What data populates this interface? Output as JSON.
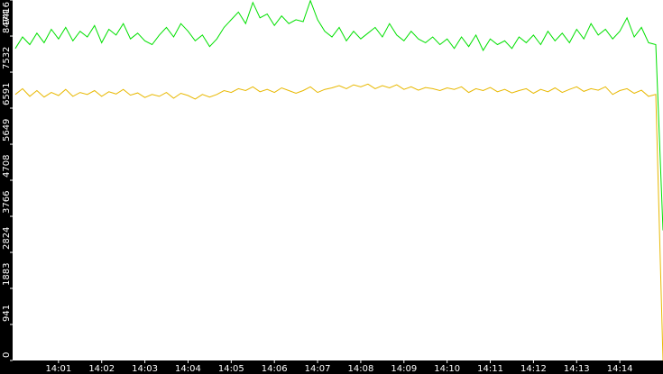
{
  "chart_data": {
    "type": "line",
    "x": [
      "14:00:00",
      "14:00:10",
      "14:00:20",
      "14:00:30",
      "14:00:40",
      "14:00:50",
      "14:01:00",
      "14:01:10",
      "14:01:20",
      "14:01:30",
      "14:01:40",
      "14:01:50",
      "14:02:00",
      "14:02:10",
      "14:02:20",
      "14:02:30",
      "14:02:40",
      "14:02:50",
      "14:03:00",
      "14:03:10",
      "14:03:20",
      "14:03:30",
      "14:03:40",
      "14:03:50",
      "14:04:00",
      "14:04:10",
      "14:04:20",
      "14:04:30",
      "14:04:40",
      "14:04:50",
      "14:05:00",
      "14:05:10",
      "14:05:20",
      "14:05:30",
      "14:05:40",
      "14:05:50",
      "14:06:00",
      "14:06:10",
      "14:06:20",
      "14:06:30",
      "14:06:40",
      "14:06:50",
      "14:07:00",
      "14:07:10",
      "14:07:20",
      "14:07:30",
      "14:07:40",
      "14:07:50",
      "14:08:00",
      "14:08:10",
      "14:08:20",
      "14:08:30",
      "14:08:40",
      "14:08:50",
      "14:09:00",
      "14:09:10",
      "14:09:20",
      "14:09:30",
      "14:09:40",
      "14:09:50",
      "14:10:00",
      "14:10:10",
      "14:10:20",
      "14:10:30",
      "14:10:40",
      "14:10:50",
      "14:11:00",
      "14:11:10",
      "14:11:20",
      "14:11:30",
      "14:11:40",
      "14:11:50",
      "14:12:00",
      "14:12:10",
      "14:12:20",
      "14:12:30",
      "14:12:40",
      "14:12:50",
      "14:13:00",
      "14:13:10",
      "14:13:20",
      "14:13:30",
      "14:13:40",
      "14:13:50",
      "14:14:00",
      "14:14:10",
      "14:14:20",
      "14:14:30",
      "14:14:40",
      "14:14:50",
      "14:15:00"
    ],
    "series": [
      {
        "color": "#00e000",
        "values": [
          8150,
          8450,
          8250,
          8550,
          8300,
          8650,
          8400,
          8700,
          8350,
          8600,
          8450,
          8750,
          8300,
          8650,
          8500,
          8800,
          8400,
          8550,
          8350,
          8250,
          8500,
          8700,
          8450,
          8800,
          8600,
          8350,
          8500,
          8200,
          8400,
          8700,
          8900,
          9100,
          8800,
          9350,
          8950,
          9050,
          8750,
          9000,
          8800,
          8900,
          8850,
          9400,
          8900,
          8600,
          8450,
          8700,
          8350,
          8600,
          8400,
          8550,
          8700,
          8450,
          8800,
          8500,
          8350,
          8600,
          8400,
          8300,
          8450,
          8250,
          8400,
          8150,
          8450,
          8200,
          8500,
          8100,
          8400,
          8250,
          8350,
          8150,
          8450,
          8300,
          8500,
          8250,
          8600,
          8350,
          8550,
          8300,
          8650,
          8400,
          8800,
          8500,
          8650,
          8400,
          8600,
          8950,
          8450,
          8700,
          8300,
          8250,
          3400
        ]
      },
      {
        "color": "#e8b800",
        "values": [
          6950,
          7100,
          6900,
          7050,
          6880,
          7000,
          6920,
          7080,
          6900,
          7000,
          6950,
          7050,
          6900,
          7020,
          6960,
          7080,
          6930,
          6990,
          6870,
          6950,
          6900,
          7000,
          6850,
          6980,
          6920,
          6830,
          6950,
          6880,
          6950,
          7050,
          7000,
          7100,
          7050,
          7150,
          7020,
          7080,
          7000,
          7120,
          7050,
          6980,
          7050,
          7150,
          7000,
          7080,
          7120,
          7180,
          7100,
          7200,
          7150,
          7220,
          7100,
          7180,
          7120,
          7200,
          7080,
          7150,
          7060,
          7130,
          7100,
          7050,
          7120,
          7080,
          7150,
          7000,
          7100,
          7050,
          7130,
          7020,
          7080,
          6990,
          7050,
          7100,
          6980,
          7080,
          7020,
          7120,
          7000,
          7080,
          7150,
          7030,
          7100,
          7060,
          7150,
          6950,
          7050,
          7100,
          6980,
          7060,
          6900,
          6950,
          0
        ]
      }
    ],
    "xlim": [
      "14:00:00",
      "14:15:00"
    ],
    "xticks": [
      "14:01",
      "14:02",
      "14:03",
      "14:04",
      "14:05",
      "14:06",
      "14:07",
      "14:08",
      "14:09",
      "14:10",
      "14:11",
      "14:12",
      "14:13",
      "14:14"
    ],
    "ylim": [
      0,
      9416
    ],
    "yticks": [
      0,
      941,
      1883,
      2824,
      3766,
      4708,
      5649,
      6591,
      7532,
      8474,
      9416
    ]
  }
}
